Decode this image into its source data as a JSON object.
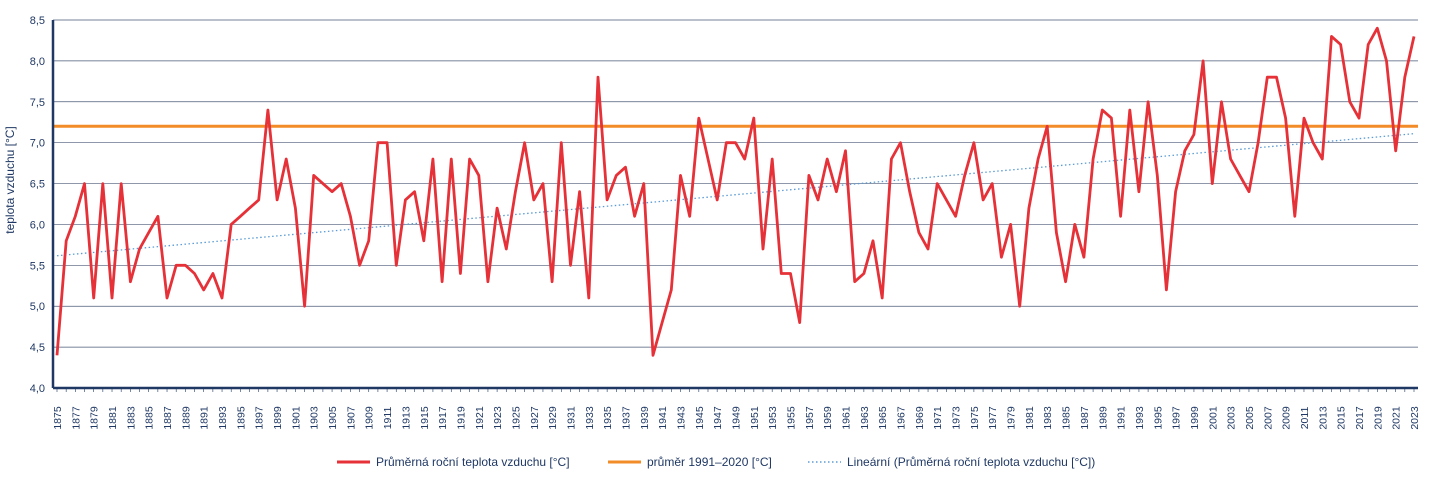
{
  "chart_data": {
    "type": "line",
    "ylabel": "teplota vzduchu [°C]",
    "xlabel": "",
    "ylim": [
      4.0,
      8.5
    ],
    "ytick_step": 0.5,
    "ytick_labels": [
      "4,0",
      "4,5",
      "5,0",
      "5,5",
      "6,0",
      "6,5",
      "7,0",
      "7,5",
      "8,0",
      "8,5"
    ],
    "grid": "horizontal",
    "legend_position": "bottom",
    "x_start": 1875,
    "x_end": 2023,
    "x_tick_step": 2,
    "x": [
      1875,
      1876,
      1877,
      1878,
      1879,
      1880,
      1881,
      1882,
      1883,
      1884,
      1885,
      1886,
      1887,
      1888,
      1889,
      1890,
      1891,
      1892,
      1893,
      1894,
      1895,
      1896,
      1897,
      1898,
      1899,
      1900,
      1901,
      1902,
      1903,
      1904,
      1905,
      1906,
      1907,
      1908,
      1909,
      1910,
      1911,
      1912,
      1913,
      1914,
      1915,
      1916,
      1917,
      1918,
      1919,
      1920,
      1921,
      1922,
      1923,
      1924,
      1925,
      1926,
      1927,
      1928,
      1929,
      1930,
      1931,
      1932,
      1933,
      1934,
      1935,
      1936,
      1937,
      1938,
      1939,
      1940,
      1941,
      1942,
      1943,
      1944,
      1945,
      1946,
      1947,
      1948,
      1949,
      1950,
      1951,
      1952,
      1953,
      1954,
      1955,
      1956,
      1957,
      1958,
      1959,
      1960,
      1961,
      1962,
      1963,
      1964,
      1965,
      1966,
      1967,
      1968,
      1969,
      1970,
      1971,
      1972,
      1973,
      1974,
      1975,
      1976,
      1977,
      1978,
      1979,
      1980,
      1981,
      1982,
      1983,
      1984,
      1985,
      1986,
      1987,
      1988,
      1989,
      1990,
      1991,
      1992,
      1993,
      1994,
      1995,
      1996,
      1997,
      1998,
      1999,
      2000,
      2001,
      2002,
      2003,
      2004,
      2005,
      2006,
      2007,
      2008,
      2009,
      2010,
      2011,
      2012,
      2013,
      2014,
      2015,
      2016,
      2017,
      2018,
      2019,
      2020,
      2021,
      2022,
      2023
    ],
    "series": [
      {
        "name": "Průměrná roční teplota vzduchu [°C]",
        "color": "#e53137",
        "style": "solid",
        "values": [
          4.4,
          5.8,
          6.1,
          6.5,
          5.1,
          6.5,
          5.1,
          6.5,
          5.3,
          5.7,
          5.9,
          6.1,
          5.1,
          5.5,
          5.5,
          5.4,
          5.2,
          5.4,
          5.1,
          6.0,
          6.1,
          6.2,
          6.3,
          7.4,
          6.3,
          6.8,
          6.2,
          5.0,
          6.6,
          6.5,
          6.4,
          6.5,
          6.1,
          5.5,
          5.8,
          7.0,
          7.0,
          5.5,
          6.3,
          6.4,
          5.8,
          6.8,
          5.3,
          6.8,
          5.4,
          6.8,
          6.6,
          5.3,
          6.2,
          5.7,
          6.4,
          7.0,
          6.3,
          6.5,
          5.3,
          7.0,
          5.5,
          6.4,
          5.1,
          7.8,
          6.3,
          6.6,
          6.7,
          6.1,
          6.5,
          4.4,
          4.8,
          5.2,
          6.6,
          6.1,
          7.3,
          6.8,
          6.3,
          7.0,
          7.0,
          6.8,
          7.3,
          5.7,
          6.8,
          5.4,
          5.4,
          4.8,
          6.6,
          6.3,
          6.8,
          6.4,
          6.9,
          5.3,
          5.4,
          5.8,
          5.1,
          6.8,
          7.0,
          6.4,
          5.9,
          5.7,
          6.5,
          6.3,
          6.1,
          6.6,
          7.0,
          6.3,
          6.5,
          5.6,
          6.0,
          5.0,
          6.2,
          6.8,
          7.2,
          5.9,
          5.3,
          6.0,
          5.6,
          6.8,
          7.4,
          7.3,
          6.1,
          7.4,
          6.4,
          7.5,
          6.6,
          5.2,
          6.4,
          6.9,
          7.1,
          8.0,
          6.5,
          7.5,
          6.8,
          6.6,
          6.4,
          7.0,
          7.8,
          7.8,
          7.3,
          6.1,
          7.3,
          7.0,
          6.8,
          8.3,
          8.2,
          7.5,
          7.3,
          8.2,
          8.4,
          8.0,
          6.9,
          7.8,
          8.3
        ]
      },
      {
        "name": "průměr 1991–2020 [°C]",
        "color": "#f28c28",
        "style": "solid",
        "constant": 7.2
      },
      {
        "name": "Lineární (Průměrná roční teplota vzduchu [°C])",
        "color": "#5b9bd5",
        "style": "dotted",
        "trend": true
      }
    ]
  },
  "legend": {
    "items": [
      {
        "label": "Průměrná roční teplota vzduchu [°C]",
        "color": "#e53137"
      },
      {
        "label": "průměr 1991–2020 [°C]",
        "color": "#f28c28"
      },
      {
        "label": "Lineární (Průměrná roční teplota vzduchu [°C])",
        "color": "#5b9bd5"
      }
    ]
  }
}
